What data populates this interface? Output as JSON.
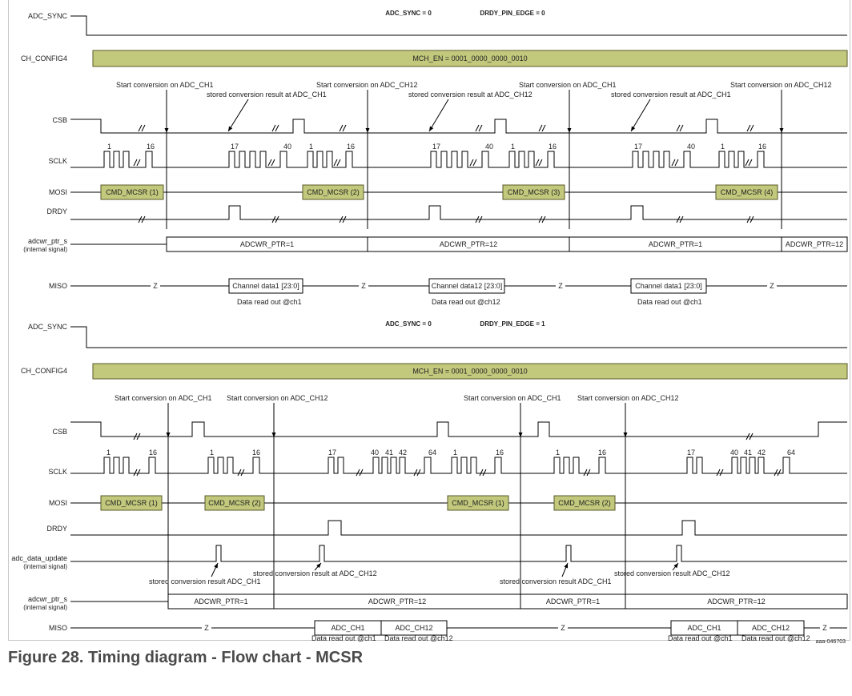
{
  "caption": "Figure 28.  Timing diagram - Flow chart - MCSR",
  "figure_id": "aaa-046703",
  "signals": {
    "adc_sync": "ADC_SYNC",
    "ch_config4": "CH_CONFIG4",
    "csb": "CSB",
    "sclk": "SCLK",
    "mosi": "MOSI",
    "drdy": "DRDY",
    "adcwr_ptr_s": "adcwr_ptr_s",
    "internal_signal": "(internal signal)",
    "miso": "MISO",
    "adc_data_update": "adc_data_update"
  },
  "top": {
    "header1": "ADC_SYNC = 0",
    "header2": "DRDY_PIN_EDGE = 0",
    "mch_en": "MCH_EN = 0001_0000_0000_0010",
    "start_ch1": "Start conversion on ADC_CH1",
    "start_ch12": "Start conversion on ADC_CH12",
    "stored_ch1": "stored conversion result at ADC_CH1",
    "stored_ch12": "stored conversion result at ADC_CH12",
    "cmd": [
      "CMD_MCSR (1)",
      "CMD_MCSR (2)",
      "CMD_MCSR (3)",
      "CMD_MCSR (4)"
    ],
    "ptr": [
      "ADCWR_PTR=1",
      "ADCWR_PTR=12",
      "ADCWR_PTR=1",
      "ADCWR_PTR=12"
    ],
    "miso_boxes": [
      "Channel data1 [23:0]",
      "Channel data12 [23:0]",
      "Channel data1 [23:0]"
    ],
    "readout": [
      "Data read out @ch1",
      "Data read out @ch12",
      "Data read out @ch1"
    ],
    "z": "Z",
    "n1": "1",
    "n16": "16",
    "n17": "17",
    "n40": "40"
  },
  "bottom": {
    "header1": "ADC_SYNC = 0",
    "header2": "DRDY_PIN_EDGE = 1",
    "mch_en": "MCH_EN = 0001_0000_0000_0010",
    "start_ch1": "Start conversion on ADC_CH1",
    "start_ch12": "Start conversion on ADC_CH12",
    "stored_ch1": "stored conversion result ADC_CH1",
    "stored_ch12_at": "stored conversion result at ADC_CH12",
    "stored_ch12": "stored conversion result ADC_CH12",
    "cmd": [
      "CMD_MCSR (1)",
      "CMD_MCSR (2)",
      "CMD_MCSR (1)",
      "CMD_MCSR (2)"
    ],
    "ptr": [
      "ADCWR_PTR=1",
      "ADCWR_PTR=12",
      "ADCWR_PTR=1",
      "ADCWR_PTR=12"
    ],
    "miso_boxes": [
      "ADC_CH1",
      "ADC_CH12",
      "ADC_CH1",
      "ADC_CH12"
    ],
    "readout": [
      "Data read out @ch1",
      "Data read out @ch12",
      "Data read out @ch1",
      "Data read out @ch12"
    ],
    "z": "Z",
    "n1": "1",
    "n16": "16",
    "n17": "17",
    "n40": "40",
    "n41": "41",
    "n42": "42",
    "n64": "64"
  },
  "colors": {
    "box_fill": "#c2c97c",
    "box_stroke": "#5a5a2a",
    "line": "#000000",
    "text": "#222222"
  }
}
